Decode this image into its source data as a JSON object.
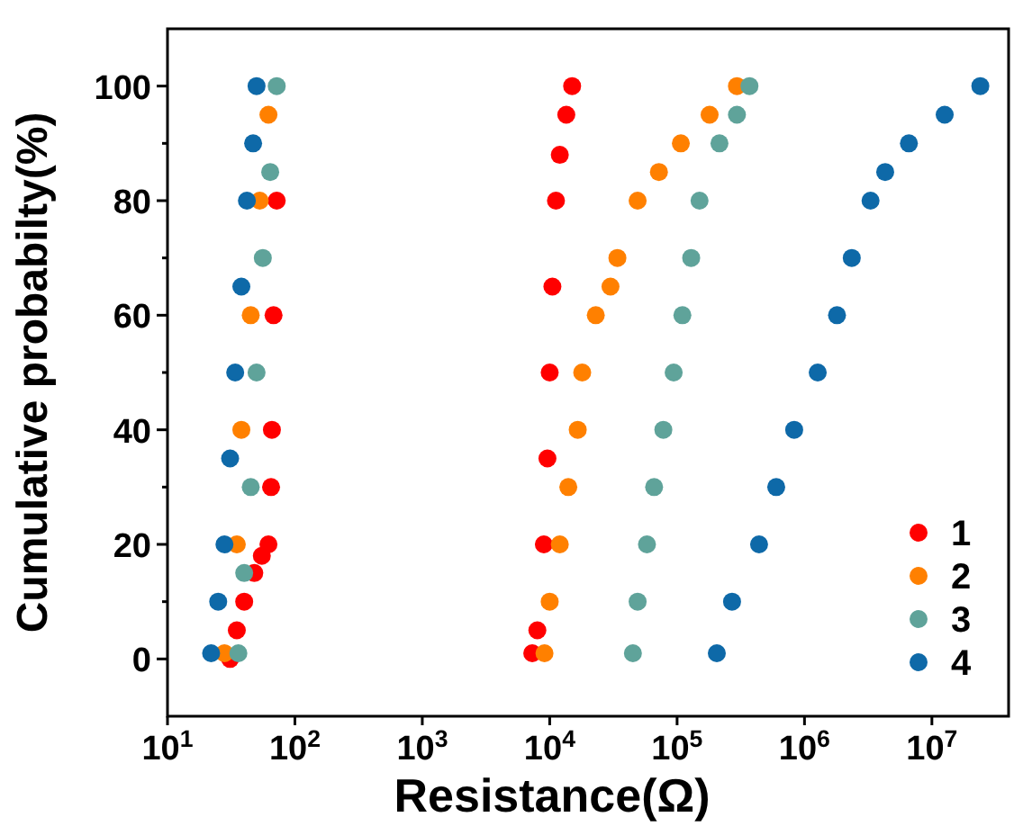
{
  "chart_data": {
    "type": "scatter",
    "xlabel": "Resistance(Ω)",
    "ylabel": "Cumulative probabilty(%)",
    "log": "x",
    "xlim": [
      10,
      40000000
    ],
    "ylim": [
      -10,
      110
    ],
    "xticks": [
      {
        "value": 10,
        "label": "10$^{1}$"
      },
      {
        "value": 100,
        "label": "10$^{2}$"
      },
      {
        "value": 1000,
        "label": "10$^{3}$"
      },
      {
        "value": 10000,
        "label": "10$^{4}$"
      },
      {
        "value": 100000,
        "label": "10$^{5}$"
      },
      {
        "value": 1000000,
        "label": "10$^{6}$"
      },
      {
        "value": 10000000,
        "label": "10$^{7}$"
      }
    ],
    "yticks": [
      0,
      {
        "value": 10,
        "label": null
      },
      20,
      {
        "value": 30,
        "label": null
      },
      40,
      {
        "value": 50,
        "label": null
      },
      60,
      {
        "value": 70,
        "label": null
      },
      80,
      {
        "value": 90,
        "label": null
      },
      100
    ],
    "marker": "circle",
    "grid": false,
    "legend": "bottom right",
    "series": [
      {
        "name": "1",
        "color": "#ff0000",
        "x": [
          31,
          35,
          40,
          48,
          55,
          62,
          65,
          66,
          68,
          72,
          7300,
          8000,
          9000,
          9600,
          10000,
          10500,
          11200,
          12000,
          13500,
          15000
        ],
        "values": [
          0,
          5,
          10,
          15,
          18,
          20,
          30,
          40,
          60,
          80,
          1,
          5,
          20,
          35,
          50,
          65,
          80,
          88,
          95,
          100
        ]
      },
      {
        "name": "2",
        "color": "#ff8000",
        "x": [
          28,
          35,
          38,
          45,
          53,
          62,
          9100,
          10000,
          12000,
          14000,
          16600,
          18000,
          23000,
          30000,
          34000,
          49000,
          72000,
          107000,
          180000,
          295000
        ],
        "values": [
          1,
          20,
          40,
          60,
          80,
          95,
          1,
          10,
          20,
          30,
          40,
          50,
          60,
          65,
          70,
          80,
          85,
          90,
          95,
          100
        ]
      },
      {
        "name": "3",
        "color": "#5fa39a",
        "x": [
          36,
          40,
          45,
          50,
          56,
          64,
          72,
          45000,
          49000,
          58000,
          66000,
          78000,
          94000,
          110000,
          129000,
          150000,
          215000,
          295000,
          370000
        ],
        "values": [
          1,
          15,
          30,
          50,
          70,
          85,
          100,
          1,
          10,
          20,
          30,
          40,
          50,
          60,
          70,
          80,
          90,
          95,
          100
        ]
      },
      {
        "name": "4",
        "color": "#0e69a8",
        "x": [
          22,
          25,
          28,
          31,
          34,
          38,
          42,
          47,
          50,
          205000,
          270000,
          440000,
          600000,
          830000,
          1270000,
          1800000,
          2350000,
          3300000,
          4300000,
          6600000,
          12600000,
          24000000
        ],
        "values": [
          1,
          10,
          20,
          35,
          50,
          65,
          80,
          90,
          100,
          1,
          10,
          20,
          30,
          40,
          50,
          60,
          70,
          80,
          85,
          90,
          95,
          100
        ]
      }
    ]
  }
}
